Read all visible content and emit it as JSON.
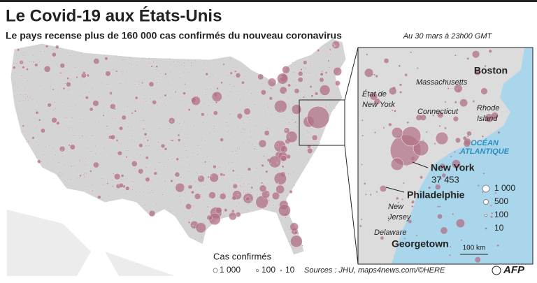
{
  "header": {
    "title": "Le Covid-19 aux États-Unis",
    "subtitle": "Le pays recense plus de 160 000 cas confirmés du nouveau coronavirus",
    "date": "Au 30 mars à 23h00 GMT"
  },
  "main_map": {
    "legend": {
      "title": "Cas confirmés",
      "items": [
        "1 000",
        "100",
        "10"
      ]
    }
  },
  "inset": {
    "cities": [
      "Boston",
      "New York",
      "Philadelphie",
      "Georgetown"
    ],
    "new_york_cases": "37 453",
    "regions": [
      [
        "Massachusetts"
      ],
      [
        "État de",
        "New York"
      ],
      [
        "Connecticut"
      ],
      [
        "Rhode",
        "Island"
      ],
      [
        "New",
        "Jersey"
      ],
      [
        "Delaware"
      ]
    ],
    "ocean": [
      "OCÉAN",
      "ATLANTIQUE"
    ],
    "legend": [
      "1 000",
      "500",
      "100",
      "10"
    ],
    "scale": "100 km"
  },
  "footer": {
    "sources": "Sources : JHU, maps4news.com/©HERE",
    "credit": "AFP"
  }
}
